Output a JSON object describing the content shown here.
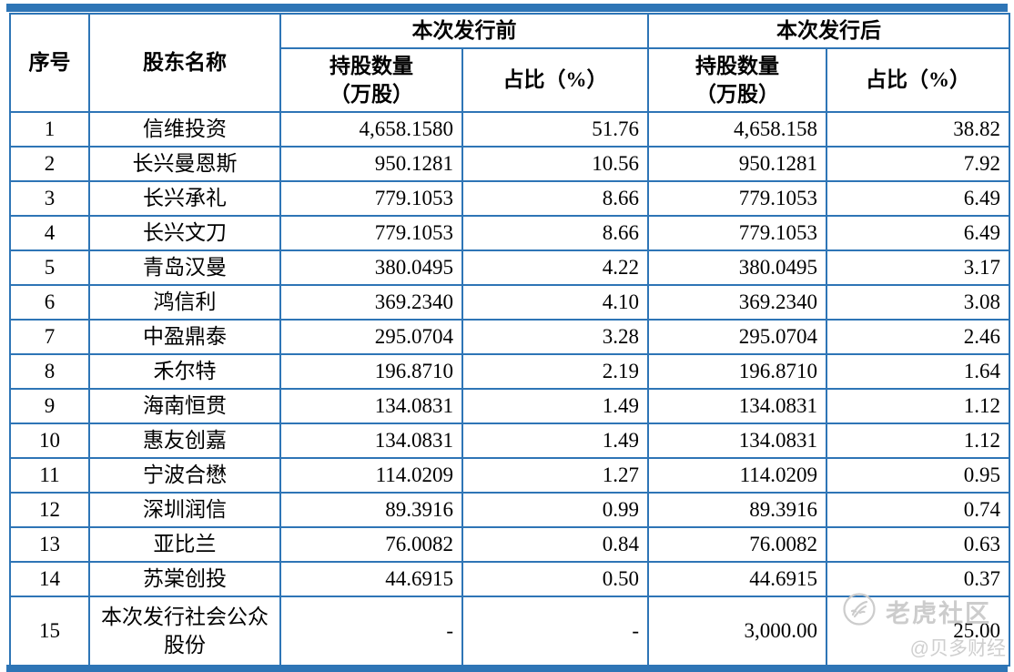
{
  "page": {
    "background_color": "#ffffff",
    "accent_bar_color": "#2e75b6",
    "table_border_color": "#2e75b6"
  },
  "table": {
    "headers": {
      "seq": "序号",
      "shareholder": "股东名称",
      "pre_issue": "本次发行前",
      "post_issue": "本次发行后",
      "shares_line1": "持股数量",
      "shares_line2": "（万股）",
      "pct": "占比（%）"
    },
    "rows": [
      {
        "seq": "1",
        "name": "信维投资",
        "pre_shares": "4,658.1580",
        "pre_pct": "51.76",
        "post_shares": "4,658.158",
        "post_pct": "38.82"
      },
      {
        "seq": "2",
        "name": "长兴曼恩斯",
        "pre_shares": "950.1281",
        "pre_pct": "10.56",
        "post_shares": "950.1281",
        "post_pct": "7.92"
      },
      {
        "seq": "3",
        "name": "长兴承礼",
        "pre_shares": "779.1053",
        "pre_pct": "8.66",
        "post_shares": "779.1053",
        "post_pct": "6.49"
      },
      {
        "seq": "4",
        "name": "长兴文刀",
        "pre_shares": "779.1053",
        "pre_pct": "8.66",
        "post_shares": "779.1053",
        "post_pct": "6.49"
      },
      {
        "seq": "5",
        "name": "青岛汉曼",
        "pre_shares": "380.0495",
        "pre_pct": "4.22",
        "post_shares": "380.0495",
        "post_pct": "3.17"
      },
      {
        "seq": "6",
        "name": "鸿信利",
        "pre_shares": "369.2340",
        "pre_pct": "4.10",
        "post_shares": "369.2340",
        "post_pct": "3.08"
      },
      {
        "seq": "7",
        "name": "中盈鼎泰",
        "pre_shares": "295.0704",
        "pre_pct": "3.28",
        "post_shares": "295.0704",
        "post_pct": "2.46"
      },
      {
        "seq": "8",
        "name": "禾尔特",
        "pre_shares": "196.8710",
        "pre_pct": "2.19",
        "post_shares": "196.8710",
        "post_pct": "1.64"
      },
      {
        "seq": "9",
        "name": "海南恒贯",
        "pre_shares": "134.0831",
        "pre_pct": "1.49",
        "post_shares": "134.0831",
        "post_pct": "1.12"
      },
      {
        "seq": "10",
        "name": "惠友创嘉",
        "pre_shares": "134.0831",
        "pre_pct": "1.49",
        "post_shares": "134.0831",
        "post_pct": "1.12"
      },
      {
        "seq": "11",
        "name": "宁波合懋",
        "pre_shares": "114.0209",
        "pre_pct": "1.27",
        "post_shares": "114.0209",
        "post_pct": "0.95"
      },
      {
        "seq": "12",
        "name": "深圳润信",
        "pre_shares": "89.3916",
        "pre_pct": "0.99",
        "post_shares": "89.3916",
        "post_pct": "0.74"
      },
      {
        "seq": "13",
        "name": "亚比兰",
        "pre_shares": "76.0082",
        "pre_pct": "0.84",
        "post_shares": "76.0082",
        "post_pct": "0.63"
      },
      {
        "seq": "14",
        "name": "苏棠创投",
        "pre_shares": "44.6915",
        "pre_pct": "0.50",
        "post_shares": "44.6915",
        "post_pct": "0.37"
      },
      {
        "seq": "15",
        "name": "本次发行社会公众股份",
        "pre_shares": "-",
        "pre_pct": "-",
        "post_shares": "3,000.00",
        "post_pct": "25.00"
      }
    ]
  },
  "watermark": {
    "brand": "老虎社区",
    "handle": "@贝多财经",
    "logo": "tiger-logo-icon",
    "color": "#c9c9c9"
  }
}
